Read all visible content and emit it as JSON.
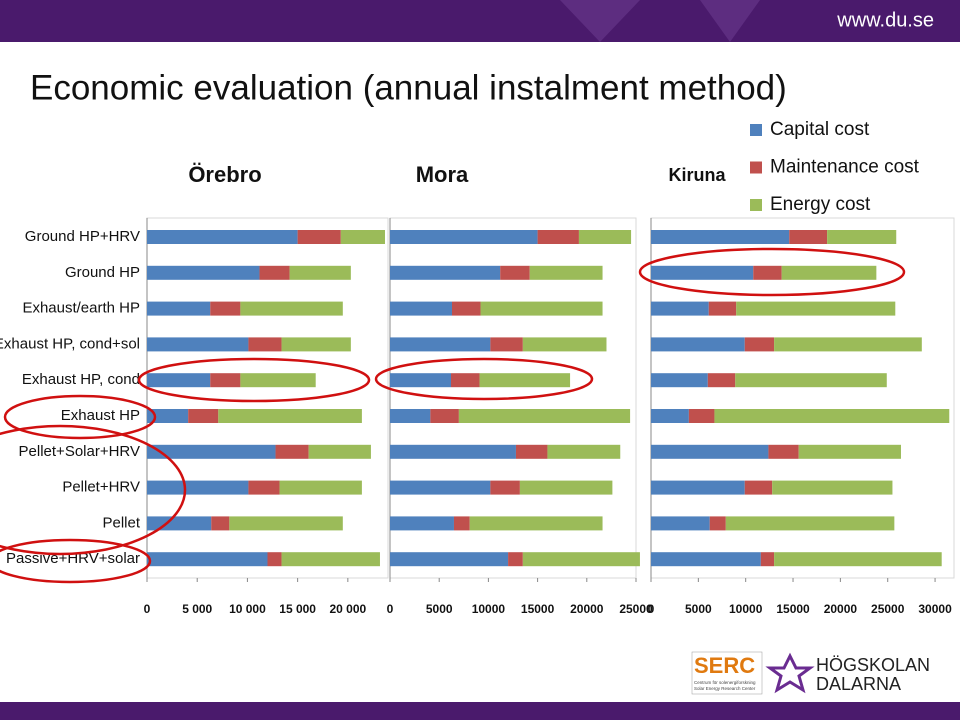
{
  "header": {
    "url": "www.du.se",
    "title": "Economic evaluation (annual instalment method)"
  },
  "chart_data": [
    {
      "type": "stacked-barh",
      "title": "Örebro",
      "categories": [
        "Ground HP+HRV",
        "Ground HP",
        "Exhaust/earth HP",
        "Exhaust HP, cond+sol",
        "Exhaust HP, cond",
        "Exhaust HP",
        "Pellet+Solar+HRV",
        "Pellet+HRV",
        "Pellet",
        "Passive+HRV+solar"
      ],
      "series": [
        {
          "color": "#4f81bd",
          "values": [
            15000,
            11200,
            6300,
            10100,
            6300,
            4100,
            12800,
            10100,
            6400,
            12000
          ]
        },
        {
          "color": "#c0504d",
          "values": [
            4300,
            3000,
            3000,
            3300,
            3000,
            3000,
            3300,
            3100,
            1800,
            1400
          ]
        },
        {
          "color": "#9bbb59",
          "values": [
            4400,
            6100,
            10200,
            6900,
            7500,
            14300,
            6200,
            8200,
            11300,
            9800
          ]
        }
      ],
      "xlim": [
        0,
        24000
      ],
      "xticks": [
        0,
        {
          "value": 5000,
          "label": "5 000"
        },
        {
          "value": 10000,
          "label": "10 000"
        },
        {
          "value": 15000,
          "label": "15 000"
        },
        {
          "value": 20000,
          "label": "20 000"
        }
      ]
    },
    {
      "type": "stacked-barh",
      "title": "Mora",
      "series": [
        {
          "color": "#4f81bd",
          "values": [
            15000,
            11200,
            6300,
            10200,
            6200,
            4100,
            12800,
            10200,
            6500,
            12000
          ]
        },
        {
          "color": "#c0504d",
          "values": [
            4200,
            3000,
            2900,
            3300,
            2900,
            2900,
            3200,
            3000,
            1600,
            1500
          ]
        },
        {
          "color": "#9bbb59",
          "values": [
            5300,
            7400,
            12400,
            8500,
            9200,
            17400,
            7400,
            9400,
            13500,
            11900
          ]
        }
      ],
      "xlim": [
        0,
        25000
      ],
      "xticks": [
        0,
        5000,
        10000,
        15000,
        20000,
        25000
      ]
    },
    {
      "type": "stacked-barh",
      "title": "Kiruna",
      "series": [
        {
          "name": "Capital cost",
          "color": "#4f81bd",
          "values": [
            14600,
            10800,
            6100,
            9900,
            6000,
            4000,
            12400,
            9900,
            6200,
            11600
          ]
        },
        {
          "name": "Maintenance cost",
          "color": "#c0504d",
          "values": [
            4000,
            3000,
            2900,
            3100,
            2900,
            2700,
            3200,
            2900,
            1700,
            1400
          ]
        },
        {
          "name": "Energy cost",
          "color": "#9bbb59",
          "values": [
            7300,
            10000,
            16800,
            15600,
            16000,
            24800,
            10800,
            12700,
            17800,
            17700
          ]
        }
      ],
      "xlim": [
        0,
        32000
      ],
      "xticks": [
        0,
        5000,
        10000,
        15000,
        20000,
        25000,
        30000
      ]
    }
  ],
  "footer": {
    "serc": "SERC",
    "serc_sub1": "Centrum för solenergiforskning",
    "serc_sub2": "Solar Energy Research Center",
    "school1": "HÖGSKOLAN",
    "school2": "DALARNA"
  }
}
